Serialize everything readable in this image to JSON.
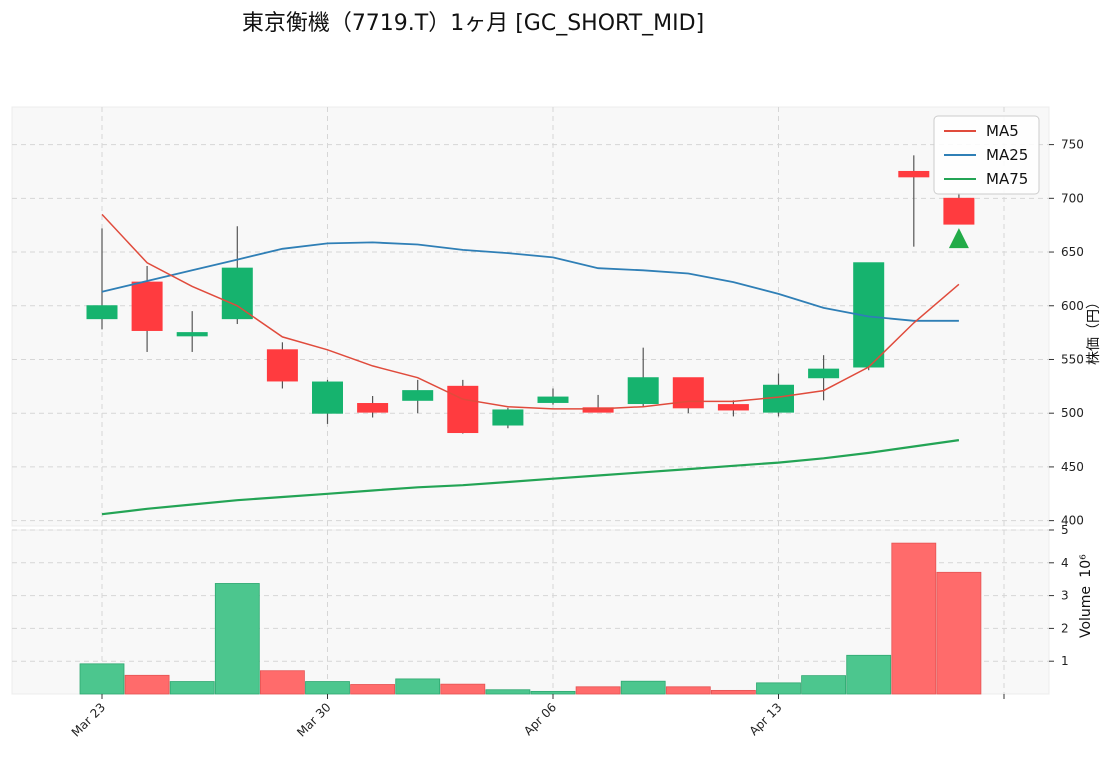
{
  "chart_data": {
    "type": "candlestick",
    "title": "東京衡機（7719.T）1ヶ月 [GC_SHORT_MID]",
    "dates": [
      "Mar 23",
      "Mar 24",
      "Mar 25",
      "Mar 26",
      "Mar 27",
      "Mar 30",
      "Mar 31",
      "Apr 01",
      "Apr 02",
      "Apr 03",
      "Apr 06",
      "Apr 07",
      "Apr 08",
      "Apr 09",
      "Apr 10",
      "Apr 13",
      "Apr 14",
      "Apr 15",
      "Apr 16",
      "Apr 17"
    ],
    "x_tick_labels": [
      "Mar 23",
      "Mar 30",
      "Apr 06",
      "Apr 13"
    ],
    "ohlc": [
      {
        "open": 588,
        "high": 672,
        "low": 578,
        "close": 600
      },
      {
        "open": 622,
        "high": 637,
        "low": 557,
        "close": 577
      },
      {
        "open": 572,
        "high": 595,
        "low": 557,
        "close": 575
      },
      {
        "open": 588,
        "high": 674,
        "low": 583,
        "close": 635
      },
      {
        "open": 559,
        "high": 566,
        "low": 523,
        "close": 530
      },
      {
        "open": 500,
        "high": 531,
        "low": 490,
        "close": 529
      },
      {
        "open": 509,
        "high": 516,
        "low": 496,
        "close": 501
      },
      {
        "open": 512,
        "high": 531,
        "low": 500,
        "close": 521
      },
      {
        "open": 525,
        "high": 531,
        "low": 481,
        "close": 482
      },
      {
        "open": 489,
        "high": 505,
        "low": 486,
        "close": 503
      },
      {
        "open": 510,
        "high": 523,
        "low": 508,
        "close": 515
      },
      {
        "open": 505,
        "high": 517,
        "low": 501,
        "close": 501
      },
      {
        "open": 509,
        "high": 561,
        "low": 506,
        "close": 533
      },
      {
        "open": 533,
        "high": 533,
        "low": 500,
        "close": 505
      },
      {
        "open": 508,
        "high": 512,
        "low": 497,
        "close": 503
      },
      {
        "open": 501,
        "high": 537,
        "low": 497,
        "close": 526
      },
      {
        "open": 533,
        "high": 554,
        "low": 512,
        "close": 541
      },
      {
        "open": 543,
        "high": 640,
        "low": 540,
        "close": 640
      },
      {
        "open": 725,
        "high": 740,
        "low": 655,
        "close": 720
      },
      {
        "open": 700,
        "high": 705,
        "low": 676,
        "close": 676
      }
    ],
    "ma5": [
      685,
      640,
      618,
      600,
      571,
      559,
      544,
      533,
      513,
      506,
      504,
      504,
      506,
      511,
      511,
      515,
      521,
      543,
      584,
      620
    ],
    "ma25": [
      613,
      623,
      633,
      643,
      653,
      658,
      659,
      657,
      652,
      649,
      645,
      635,
      633,
      630,
      622,
      611,
      598,
      590,
      586,
      586
    ],
    "ma75": [
      406,
      411,
      415,
      419,
      422,
      425,
      428,
      431,
      433,
      436,
      439,
      442,
      445,
      448,
      451,
      454,
      458,
      463,
      469,
      475
    ],
    "volume": [
      0.92,
      0.57,
      0.38,
      3.37,
      0.71,
      0.38,
      0.29,
      0.46,
      0.3,
      0.13,
      0.08,
      0.22,
      0.39,
      0.22,
      0.11,
      0.34,
      0.56,
      1.18,
      4.6,
      3.71
    ],
    "signal_marker": {
      "date_index": 19,
      "price": 662,
      "shape": "triangle-up",
      "color": "#22ab48"
    },
    "price_axis": {
      "label": "株価（円）",
      "ylim": [
        395,
        785
      ],
      "ticks": [
        400,
        450,
        500,
        550,
        600,
        650,
        700,
        750
      ]
    },
    "volume_axis": {
      "label": "Volume",
      "exponent_label": "10⁶",
      "ylim": [
        0,
        5
      ],
      "ticks": [
        1,
        2,
        3,
        4,
        5
      ]
    },
    "legend": {
      "placement": "top-right",
      "entries": [
        {
          "label": "MA5",
          "color": "#e04b3c"
        },
        {
          "label": "MA25",
          "color": "#2f7fb6"
        },
        {
          "label": "MA75",
          "color": "#23a455"
        }
      ]
    },
    "colors": {
      "up": "#16b36e",
      "down": "#ff3b3f",
      "volume_up": "#4cc68e",
      "volume_down": "#ff6b6b",
      "panel_bg": "#f8f8f8",
      "grid": "#d6d6d6"
    },
    "grid": true
  }
}
